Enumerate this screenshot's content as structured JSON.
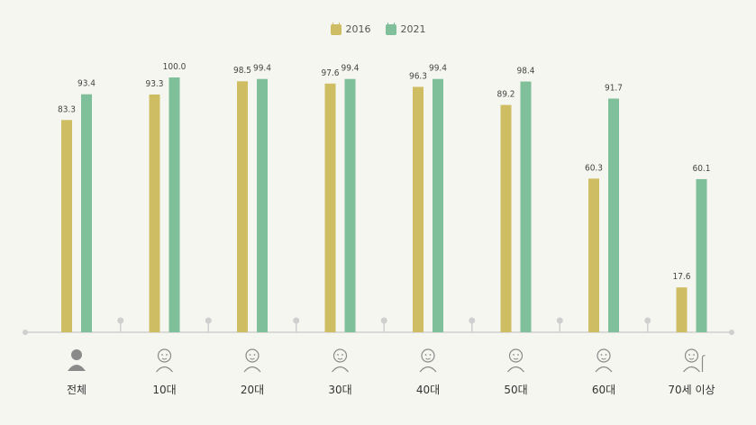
{
  "chart_data": {
    "type": "bar",
    "categories": [
      "전체",
      "10대",
      "20대",
      "30대",
      "40대",
      "50대",
      "60대",
      "70세 이상"
    ],
    "series": [
      {
        "name": "2016",
        "color": "#cfbd63",
        "values": [
          83.3,
          93.3,
          98.5,
          97.6,
          96.3,
          89.2,
          60.3,
          17.6
        ],
        "labels": [
          "83.3",
          "93.3",
          "98.5",
          "97.6",
          "96.3",
          "89.2",
          "60.3",
          "17.6"
        ]
      },
      {
        "name": "2021",
        "color": "#7fbf9a",
        "values": [
          93.4,
          100.0,
          99.4,
          99.4,
          99.4,
          98.4,
          91.7,
          60.1
        ],
        "labels": [
          "93.4",
          "100.0",
          "99.4",
          "99.4",
          "99.4",
          "98.4",
          "91.7",
          "60.1"
        ]
      }
    ],
    "title": "",
    "xlabel": "",
    "ylabel": "",
    "ylim": [
      0,
      100
    ],
    "grid": false,
    "legend_position": "top-center",
    "icons": [
      "person-silhouette-icon",
      "teen-face-icon",
      "young-adult-face-icon",
      "adult-30s-face-icon",
      "adult-40s-face-icon",
      "adult-50s-face-icon",
      "senior-60s-face-icon",
      "elderly-with-cane-icon"
    ]
  },
  "colors": {
    "background": "#f6f6f1",
    "axis": "#cfcfcf",
    "icon_stroke": "#8a8a8a",
    "icon_fill": "#8a8a8a"
  }
}
